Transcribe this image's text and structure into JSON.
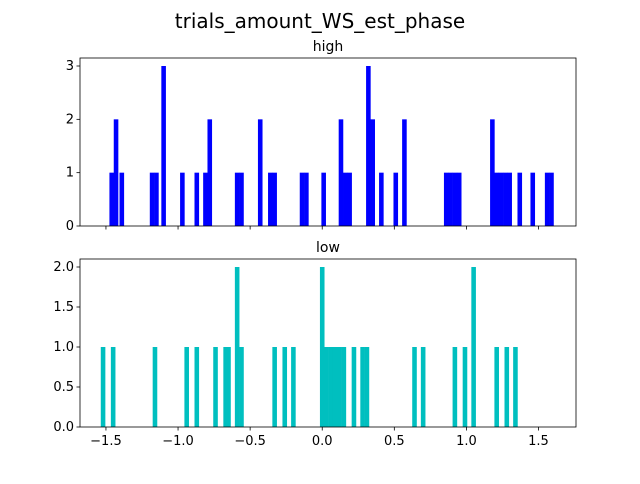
{
  "figure": {
    "suptitle": "trials_amount_WS_est_phase"
  },
  "chart_data": [
    {
      "type": "bar",
      "title": "high",
      "color": "#0000ff",
      "xlim": [
        -1.68,
        1.76
      ],
      "ylim": [
        0,
        3.15
      ],
      "xticks": [
        -1.5,
        -1.0,
        -0.5,
        0.0,
        0.5,
        1.0,
        1.5
      ],
      "xtick_labels_visible": false,
      "yticks": [
        0,
        1,
        2,
        3
      ],
      "ytick_labels": [
        "0",
        "1",
        "2",
        "3"
      ],
      "bin_width": 0.0318,
      "bins": [
        {
          "x": -1.46,
          "count": 1
        },
        {
          "x": -1.43,
          "count": 2
        },
        {
          "x": -1.39,
          "count": 1
        },
        {
          "x": -1.18,
          "count": 1
        },
        {
          "x": -1.15,
          "count": 1
        },
        {
          "x": -1.1,
          "count": 3
        },
        {
          "x": -0.97,
          "count": 1
        },
        {
          "x": -0.87,
          "count": 1
        },
        {
          "x": -0.81,
          "count": 1
        },
        {
          "x": -0.78,
          "count": 2
        },
        {
          "x": -0.59,
          "count": 1
        },
        {
          "x": -0.56,
          "count": 1
        },
        {
          "x": -0.43,
          "count": 2
        },
        {
          "x": -0.36,
          "count": 1
        },
        {
          "x": -0.33,
          "count": 1
        },
        {
          "x": -0.14,
          "count": 1
        },
        {
          "x": -0.11,
          "count": 1
        },
        {
          "x": 0.01,
          "count": 1
        },
        {
          "x": 0.13,
          "count": 2
        },
        {
          "x": 0.16,
          "count": 1
        },
        {
          "x": 0.19,
          "count": 1
        },
        {
          "x": 0.32,
          "count": 3
        },
        {
          "x": 0.35,
          "count": 2
        },
        {
          "x": 0.41,
          "count": 1
        },
        {
          "x": 0.51,
          "count": 1
        },
        {
          "x": 0.57,
          "count": 2
        },
        {
          "x": 0.86,
          "count": 1
        },
        {
          "x": 0.89,
          "count": 1
        },
        {
          "x": 0.92,
          "count": 1
        },
        {
          "x": 0.95,
          "count": 1
        },
        {
          "x": 1.18,
          "count": 2
        },
        {
          "x": 1.21,
          "count": 1
        },
        {
          "x": 1.24,
          "count": 1
        },
        {
          "x": 1.27,
          "count": 1
        },
        {
          "x": 1.3,
          "count": 1
        },
        {
          "x": 1.37,
          "count": 1
        },
        {
          "x": 1.46,
          "count": 1
        },
        {
          "x": 1.56,
          "count": 1
        },
        {
          "x": 1.59,
          "count": 1
        }
      ]
    },
    {
      "type": "bar",
      "title": "low",
      "color": "#00bfbf",
      "xlim": [
        -1.68,
        1.76
      ],
      "ylim": [
        0,
        2.1
      ],
      "xticks": [
        -1.5,
        -1.0,
        -0.5,
        0.0,
        0.5,
        1.0,
        1.5
      ],
      "xtick_labels": [
        "−1.5",
        "−1.0",
        "−0.5",
        "0.0",
        "0.5",
        "1.0",
        "1.5"
      ],
      "xtick_labels_visible": true,
      "yticks": [
        0,
        0.5,
        1.0,
        1.5,
        2.0
      ],
      "ytick_labels": [
        "0.0",
        "0.5",
        "1.0",
        "1.5",
        "2.0"
      ],
      "bin_width": 0.0318,
      "bins": [
        {
          "x": -1.52,
          "count": 1
        },
        {
          "x": -1.45,
          "count": 1
        },
        {
          "x": -1.16,
          "count": 1
        },
        {
          "x": -0.94,
          "count": 1
        },
        {
          "x": -0.87,
          "count": 1
        },
        {
          "x": -0.74,
          "count": 1
        },
        {
          "x": -0.67,
          "count": 1
        },
        {
          "x": -0.65,
          "count": 1
        },
        {
          "x": -0.59,
          "count": 2
        },
        {
          "x": -0.56,
          "count": 1
        },
        {
          "x": -0.33,
          "count": 1
        },
        {
          "x": -0.26,
          "count": 1
        },
        {
          "x": -0.2,
          "count": 1
        },
        {
          "x": 0.0,
          "count": 2
        },
        {
          "x": 0.03,
          "count": 1
        },
        {
          "x": 0.06,
          "count": 1
        },
        {
          "x": 0.09,
          "count": 1
        },
        {
          "x": 0.12,
          "count": 1
        },
        {
          "x": 0.15,
          "count": 1
        },
        {
          "x": 0.22,
          "count": 1
        },
        {
          "x": 0.28,
          "count": 1
        },
        {
          "x": 0.31,
          "count": 1
        },
        {
          "x": 0.64,
          "count": 1
        },
        {
          "x": 0.7,
          "count": 1
        },
        {
          "x": 0.92,
          "count": 1
        },
        {
          "x": 0.99,
          "count": 1
        },
        {
          "x": 1.05,
          "count": 2
        },
        {
          "x": 1.21,
          "count": 1
        },
        {
          "x": 1.28,
          "count": 1
        },
        {
          "x": 1.34,
          "count": 1
        }
      ]
    }
  ]
}
